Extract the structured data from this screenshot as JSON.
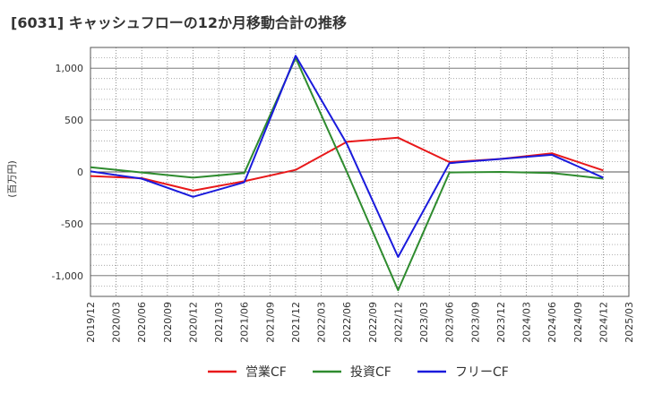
{
  "chart_data": {
    "type": "line",
    "title": "[6031]  キャッシュフローの12か月移動合計の推移",
    "ylabel": "(百万円)",
    "xlabel": "",
    "ylim": [
      -1200,
      1200
    ],
    "yticks": [
      1000,
      500,
      0,
      -500,
      -1000
    ],
    "ytick_labels": [
      "1,000",
      "500",
      "0",
      "-500",
      "-1,000"
    ],
    "categories": [
      "2019/12",
      "2020/03",
      "2020/06",
      "2020/09",
      "2020/12",
      "2021/03",
      "2021/06",
      "2021/09",
      "2021/12",
      "2022/03",
      "2022/06",
      "2022/09",
      "2022/12",
      "2023/03",
      "2023/06",
      "2023/09",
      "2023/12",
      "2024/03",
      "2024/06",
      "2024/09",
      "2024/12",
      "2025/03"
    ],
    "grid": true,
    "legend_position": "bottom",
    "series": [
      {
        "name": "営業CF",
        "color": "#e8181a",
        "points": [
          [
            0,
            -40
          ],
          [
            2,
            -60
          ],
          [
            4,
            -180
          ],
          [
            6,
            -90
          ],
          [
            8,
            20
          ],
          [
            10,
            290
          ],
          [
            12,
            330
          ],
          [
            14,
            95
          ],
          [
            16,
            125
          ],
          [
            18,
            180
          ],
          [
            20,
            15
          ]
        ]
      },
      {
        "name": "投資CF",
        "color": "#2e8b2e",
        "points": [
          [
            0,
            45
          ],
          [
            2,
            -5
          ],
          [
            4,
            -55
          ],
          [
            6,
            -10
          ],
          [
            8,
            1100
          ],
          [
            10,
            0
          ],
          [
            12,
            -1140
          ],
          [
            14,
            -5
          ],
          [
            16,
            0
          ],
          [
            18,
            -10
          ],
          [
            20,
            -65
          ]
        ]
      },
      {
        "name": "フリーCF",
        "color": "#1a1adc",
        "points": [
          [
            0,
            5
          ],
          [
            2,
            -65
          ],
          [
            4,
            -240
          ],
          [
            6,
            -100
          ],
          [
            8,
            1120
          ],
          [
            10,
            270
          ],
          [
            12,
            -820
          ],
          [
            14,
            85
          ],
          [
            16,
            125
          ],
          [
            18,
            165
          ],
          [
            20,
            -55
          ]
        ]
      }
    ]
  }
}
